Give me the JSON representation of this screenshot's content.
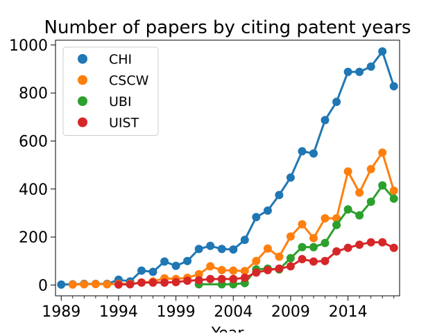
{
  "chart_data": {
    "type": "line",
    "title": "Number of papers by citing patent years",
    "xlabel": "Year",
    "ylabel": "",
    "xlim": [
      1988.5,
      2018.5
    ],
    "ylim": [
      -45,
      1020
    ],
    "xticks": [
      1989,
      1994,
      1999,
      2004,
      2009,
      2014
    ],
    "yticks": [
      0,
      200,
      400,
      600,
      800,
      1000
    ],
    "grid": false,
    "legend_position": "top-left",
    "series": [
      {
        "name": "CHI",
        "color": "#1f77b4",
        "x": [
          1989,
          1990,
          1991,
          1992,
          1993,
          1994,
          1995,
          1996,
          1997,
          1998,
          1999,
          2000,
          2001,
          2002,
          2003,
          2004,
          2005,
          2006,
          2007,
          2008,
          2009,
          2010,
          2011,
          2012,
          2013,
          2014,
          2015,
          2016,
          2017,
          2018
        ],
        "y": [
          2,
          3,
          5,
          5,
          5,
          22,
          15,
          60,
          55,
          98,
          80,
          100,
          150,
          163,
          150,
          148,
          188,
          283,
          310,
          375,
          448,
          557,
          548,
          687,
          763,
          888,
          888,
          910,
          973,
          828
        ]
      },
      {
        "name": "CSCW",
        "color": "#ff7f0e",
        "x": [
          1990,
          1991,
          1992,
          1993,
          1994,
          1995,
          1996,
          1997,
          1998,
          1999,
          2000,
          2001,
          2002,
          2003,
          2004,
          2005,
          2006,
          2007,
          2008,
          2009,
          2010,
          2011,
          2012,
          2013,
          2014,
          2015,
          2016,
          2017,
          2018
        ],
        "y": [
          2,
          3,
          4,
          3,
          5,
          5,
          10,
          15,
          28,
          25,
          30,
          45,
          78,
          62,
          60,
          58,
          100,
          152,
          118,
          202,
          253,
          195,
          278,
          278,
          473,
          385,
          483,
          552,
          393
        ]
      },
      {
        "name": "UBI",
        "color": "#2ca02c",
        "x": [
          2001,
          2003,
          2004,
          2005,
          2006,
          2007,
          2008,
          2009,
          2010,
          2011,
          2012,
          2013,
          2014,
          2015,
          2016,
          2017,
          2018
        ],
        "y": [
          3,
          3,
          3,
          8,
          65,
          68,
          65,
          112,
          158,
          158,
          175,
          250,
          315,
          290,
          347,
          415,
          360
        ]
      },
      {
        "name": "UIST",
        "color": "#d62728",
        "x": [
          1994,
          1995,
          1996,
          1997,
          1998,
          1999,
          2000,
          2001,
          2002,
          2003,
          2004,
          2005,
          2006,
          2007,
          2008,
          2009,
          2010,
          2011,
          2012,
          2013,
          2014,
          2015,
          2016,
          2017,
          2018
        ],
        "y": [
          2,
          3,
          10,
          10,
          10,
          12,
          18,
          20,
          25,
          25,
          25,
          30,
          52,
          62,
          68,
          78,
          108,
          98,
          100,
          140,
          155,
          168,
          178,
          178,
          155
        ]
      }
    ]
  }
}
